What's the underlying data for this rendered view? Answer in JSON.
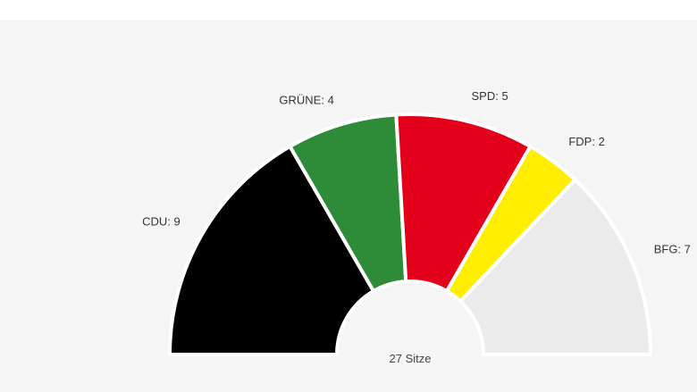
{
  "chart_data": {
    "type": "pie",
    "variant": "semicircle-donut",
    "total_label": "27 Sitze",
    "slices": [
      {
        "name": "CDU",
        "label": "CDU: 9",
        "value": 9,
        "color": "#000000"
      },
      {
        "name": "GRÜNE",
        "label": "GRÜNE: 4",
        "value": 4,
        "color": "#2e8b38"
      },
      {
        "name": "SPD",
        "label": "SPD: 5",
        "value": 5,
        "color": "#e2001a"
      },
      {
        "name": "FDP",
        "label": "FDP: 2",
        "value": 2,
        "color": "#ffee00"
      },
      {
        "name": "BFG",
        "label": "BFG: 7",
        "value": 7,
        "color": "#ebebeb"
      }
    ]
  }
}
